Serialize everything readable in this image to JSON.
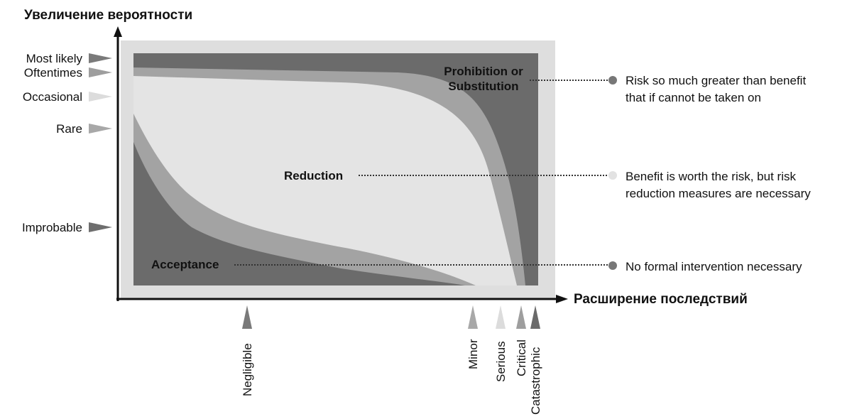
{
  "y_axis_title": "Увеличение вероятности",
  "x_axis_title": "Расширение последствий",
  "probability_levels": [
    {
      "label": "Most likely",
      "color": "#7a7a7a"
    },
    {
      "label": "Oftentimes",
      "color": "#9e9e9e"
    },
    {
      "label": "Occasional",
      "color": "#dcdcdc"
    },
    {
      "label": "Rare",
      "color": "#a8a8a8"
    },
    {
      "label": "Improbable",
      "color": "#6e6e6e"
    }
  ],
  "severity_levels": [
    {
      "label": "Negligible",
      "color": "#7a7a7a"
    },
    {
      "label": "Minor",
      "color": "#a8a8a8"
    },
    {
      "label": "Serious",
      "color": "#dcdcdc"
    },
    {
      "label": "Critical",
      "color": "#9e9e9e"
    },
    {
      "label": "Catastrophic",
      "color": "#6a6a6a"
    }
  ],
  "zones": {
    "prohibition": {
      "label_line1": "Prohibition or",
      "label_line2": "Substitution",
      "color": "#6b6b6b"
    },
    "reduction": {
      "label": "Reduction",
      "color": "#e4e4e4"
    },
    "acceptance": {
      "label": "Acceptance",
      "color": "#6b6b6b"
    },
    "band_color": "#a3a3a3",
    "frame_color": "#dedede"
  },
  "legend": [
    {
      "bullet_color": "#777777",
      "line1": "Risk so much greater than benefit",
      "line2": "that if cannot be taken on"
    },
    {
      "bullet_color": "#e2e2e2",
      "line1": "Benefit is worth the risk, but risk",
      "line2": "reduction measures are necessary"
    },
    {
      "bullet_color": "#777777",
      "line1": "No formal intervention necessary",
      "line2": ""
    }
  ]
}
